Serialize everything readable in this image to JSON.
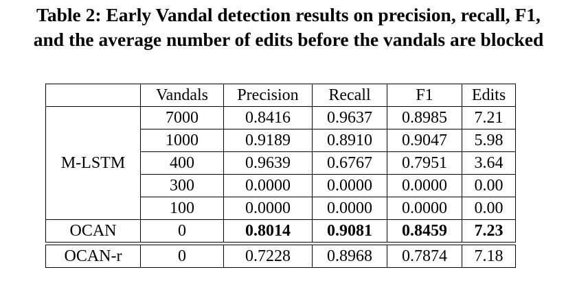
{
  "caption": {
    "line1": "Table 2: Early Vandal detection results on precision, recall, F1,",
    "line2": "and the average number of edits before the vandals are blocked"
  },
  "table": {
    "headers": [
      "",
      "Vandals",
      "Precision",
      "Recall",
      "F1",
      "Edits"
    ],
    "mlstm": {
      "label": "M-LSTM",
      "rows": [
        [
          "7000",
          "0.8416",
          "0.9637",
          "0.8985",
          "7.21"
        ],
        [
          "1000",
          "0.9189",
          "0.8910",
          "0.9047",
          "5.98"
        ],
        [
          "400",
          "0.9639",
          "0.6767",
          "0.7951",
          "3.64"
        ],
        [
          "300",
          "0.0000",
          "0.0000",
          "0.0000",
          "0.00"
        ],
        [
          "100",
          "0.0000",
          "0.0000",
          "0.0000",
          "0.00"
        ]
      ]
    },
    "ocan": [
      "OCAN",
      "0",
      "0.8014",
      "0.9081",
      "0.8459",
      "7.23"
    ],
    "ocan_r": [
      "OCAN-r",
      "0",
      "0.7228",
      "0.8968",
      "0.7874",
      "7.18"
    ]
  }
}
